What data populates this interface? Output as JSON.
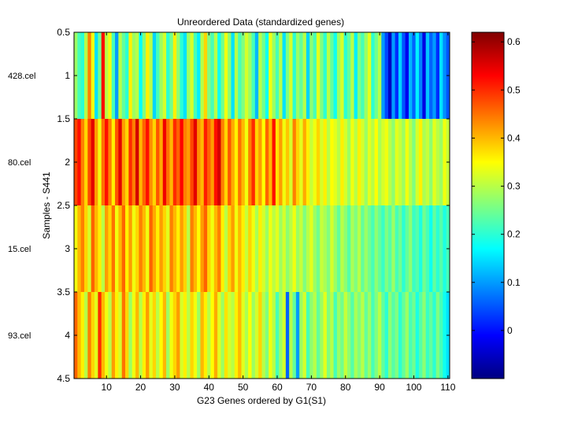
{
  "chart_data": {
    "type": "heatmap",
    "title": "Unreordered Data (standardized genes)",
    "xlabel": "G23 Genes ordered by G1(S1)",
    "ylabel": "Samples - S441",
    "xlim": [
      0.5,
      110.5
    ],
    "ylim": [
      0.5,
      4.5
    ],
    "x_ticks": [
      10,
      20,
      30,
      40,
      50,
      60,
      70,
      80,
      90,
      100,
      110
    ],
    "y_ticks": [
      0.5,
      1,
      1.5,
      2,
      2.5,
      3,
      3.5,
      4,
      4.5
    ],
    "row_labels": [
      "428.cel",
      "80.cel",
      "15.cel",
      "93.cel"
    ],
    "colorbar": {
      "min": -0.1,
      "max": 0.62,
      "ticks": [
        0,
        0.1,
        0.2,
        0.3,
        0.4,
        0.5,
        0.6
      ],
      "colormap": "jet"
    },
    "values": [
      [
        0.28,
        0.22,
        0.2,
        0.3,
        0.44,
        0.34,
        0.15,
        0.25,
        0.52,
        0.3,
        0.34,
        0.22,
        0.1,
        0.3,
        0.24,
        0.2,
        0.36,
        0.28,
        0.3,
        0.17,
        0.26,
        0.36,
        0.3,
        0.14,
        0.22,
        0.28,
        0.32,
        0.2,
        0.25,
        0.36,
        0.27,
        0.2,
        0.15,
        0.28,
        0.32,
        0.22,
        0.16,
        0.3,
        0.38,
        0.26,
        0.22,
        0.3,
        0.18,
        0.25,
        0.34,
        0.27,
        0.15,
        0.3,
        0.22,
        0.26,
        0.32,
        0.28,
        0.22,
        0.12,
        0.3,
        0.25,
        0.18,
        0.34,
        0.28,
        0.22,
        0.3,
        0.15,
        0.26,
        0.32,
        0.2,
        0.28,
        0.24,
        0.3,
        0.14,
        0.27,
        0.22,
        0.33,
        0.26,
        0.2,
        0.3,
        0.24,
        0.18,
        0.28,
        0.32,
        0.2,
        0.24,
        0.3,
        0.16,
        0.26,
        0.22,
        0.28,
        0.33,
        0.2,
        0.25,
        0.3,
        0.1,
        0.04,
        -0.05,
        0.1,
        0.02,
        0.14,
        0.05,
        -0.02,
        0.12,
        0.06,
        0.16,
        0.08,
        -0.03,
        0.13,
        0.06,
        0.1,
        0.02,
        0.15,
        0.09,
        0.05
      ],
      [
        0.48,
        0.52,
        0.44,
        0.38,
        0.48,
        0.55,
        0.42,
        0.34,
        0.45,
        0.52,
        0.44,
        0.36,
        0.47,
        0.55,
        0.42,
        0.38,
        0.5,
        0.44,
        0.56,
        0.4,
        0.46,
        0.52,
        0.43,
        0.38,
        0.47,
        0.41,
        0.54,
        0.45,
        0.4,
        0.5,
        0.46,
        0.53,
        0.44,
        0.42,
        0.48,
        0.55,
        0.43,
        0.4,
        0.51,
        0.46,
        0.42,
        0.52,
        0.56,
        0.44,
        0.38,
        0.47,
        0.41,
        0.36,
        0.45,
        0.4,
        0.34,
        0.44,
        0.5,
        0.38,
        0.42,
        0.35,
        0.46,
        0.4,
        0.52,
        0.37,
        0.42,
        0.34,
        0.39,
        0.32,
        0.44,
        0.38,
        0.33,
        0.41,
        0.36,
        0.31,
        0.34,
        0.38,
        0.32,
        0.36,
        0.3,
        0.35,
        0.33,
        0.3,
        0.36,
        0.32,
        0.28,
        0.34,
        0.3,
        0.36,
        0.32,
        0.28,
        0.33,
        0.3,
        0.35,
        0.29,
        0.32,
        0.34,
        0.3,
        0.27,
        0.33,
        0.31,
        0.28,
        0.34,
        0.3,
        0.26,
        0.32,
        0.36,
        0.29,
        0.31,
        0.27,
        0.33,
        0.3,
        0.28,
        0.34,
        0.31
      ],
      [
        0.34,
        0.4,
        0.44,
        0.38,
        0.32,
        0.46,
        0.4,
        0.36,
        0.3,
        0.42,
        0.38,
        0.45,
        0.34,
        0.4,
        0.46,
        0.36,
        0.42,
        0.34,
        0.38,
        0.44,
        0.4,
        0.34,
        0.46,
        0.41,
        0.36,
        0.42,
        0.38,
        0.33,
        0.44,
        0.4,
        0.36,
        0.42,
        0.38,
        0.3,
        0.44,
        0.4,
        0.35,
        0.42,
        0.46,
        0.38,
        0.34,
        0.4,
        0.44,
        0.36,
        0.3,
        0.38,
        0.42,
        0.34,
        0.4,
        0.36,
        0.31,
        0.38,
        0.34,
        0.29,
        0.36,
        0.32,
        0.28,
        0.34,
        0.3,
        0.33,
        0.28,
        0.32,
        0.27,
        0.3,
        0.34,
        0.28,
        0.31,
        0.26,
        0.3,
        0.33,
        0.28,
        0.25,
        0.31,
        0.29,
        0.26,
        0.32,
        0.28,
        0.24,
        0.3,
        0.27,
        0.23,
        0.29,
        0.26,
        0.3,
        0.24,
        0.28,
        0.25,
        0.22,
        0.27,
        0.24,
        0.21,
        0.26,
        0.23,
        0.28,
        0.22,
        0.25,
        0.2,
        0.24,
        0.27,
        0.21,
        0.23,
        0.19,
        0.25,
        0.22,
        0.18,
        0.24,
        0.2,
        0.23,
        0.19,
        0.22
      ],
      [
        0.46,
        0.4,
        0.36,
        0.3,
        0.44,
        0.38,
        0.33,
        0.5,
        0.4,
        0.34,
        0.3,
        0.42,
        0.36,
        0.32,
        0.45,
        0.38,
        0.28,
        0.34,
        0.4,
        0.3,
        0.36,
        0.42,
        0.33,
        0.38,
        0.3,
        0.35,
        0.4,
        0.28,
        0.34,
        0.38,
        0.42,
        0.32,
        0.36,
        0.3,
        0.38,
        0.34,
        0.28,
        0.4,
        0.36,
        0.3,
        0.35,
        0.41,
        0.33,
        0.28,
        0.37,
        0.32,
        0.3,
        0.36,
        0.4,
        0.33,
        0.29,
        0.35,
        0.28,
        0.32,
        0.38,
        0.3,
        0.26,
        0.34,
        0.3,
        0.22,
        0.28,
        0.32,
        0.06,
        0.3,
        0.24,
        0.1,
        0.28,
        0.32,
        0.22,
        0.27,
        0.3,
        0.24,
        0.28,
        0.33,
        0.26,
        0.3,
        0.22,
        0.28,
        0.25,
        0.31,
        0.27,
        0.23,
        0.29,
        0.26,
        0.3,
        0.24,
        0.28,
        0.22,
        0.26,
        0.3,
        0.24,
        0.2,
        0.27,
        0.23,
        0.26,
        0.2,
        0.24,
        0.28,
        0.22,
        0.25,
        0.19,
        0.23,
        0.27,
        0.21,
        0.24,
        0.2,
        0.26,
        0.22,
        0.18,
        0.15
      ]
    ]
  }
}
